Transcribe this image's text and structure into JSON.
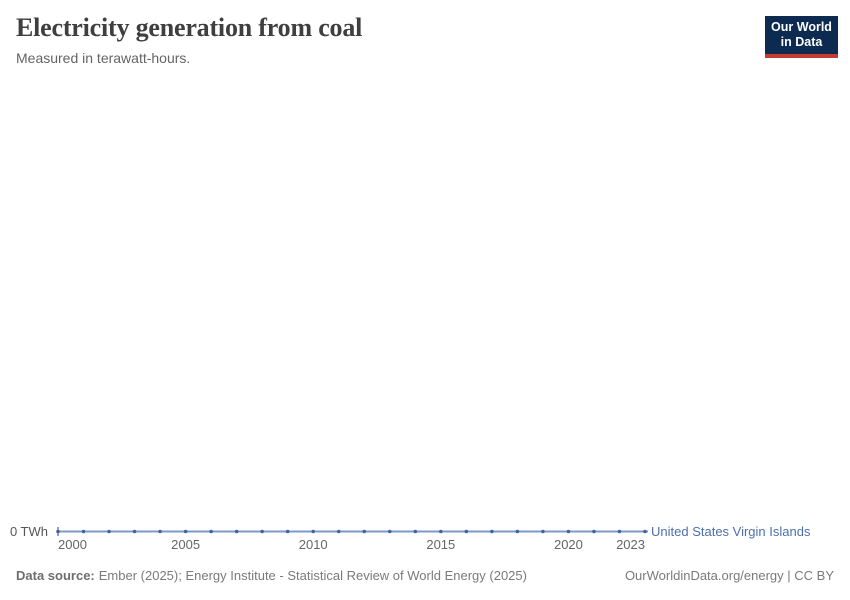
{
  "header": {
    "logo": {
      "line1": "Our World",
      "line2": "in Data",
      "bg_color": "#0d2b51",
      "accent_color": "#c73a2f"
    }
  },
  "chart_data": {
    "type": "line",
    "title": "Electricity generation from coal",
    "subtitle": "Measured in terawatt-hours.",
    "x": [
      2000,
      2001,
      2002,
      2003,
      2004,
      2005,
      2006,
      2007,
      2008,
      2009,
      2010,
      2011,
      2012,
      2013,
      2014,
      2015,
      2016,
      2017,
      2018,
      2019,
      2020,
      2021,
      2022,
      2023
    ],
    "series": [
      {
        "name": "United States Virgin Islands",
        "values": [
          0,
          0,
          0,
          0,
          0,
          0,
          0,
          0,
          0,
          0,
          0,
          0,
          0,
          0,
          0,
          0,
          0,
          0,
          0,
          0,
          0,
          0,
          0,
          0
        ],
        "unit": "TWh",
        "line_color": "#7e99c8",
        "marker_color": "#41639f",
        "label_color": "#4d6fac"
      }
    ],
    "x_ticks": [
      2000,
      2005,
      2010,
      2015,
      2020,
      2023
    ],
    "y_ticks": [
      {
        "value": 0,
        "label": "0 TWh"
      }
    ],
    "xlim": [
      2000,
      2023
    ],
    "grid": false,
    "legend_position": "end-of-line"
  },
  "footer": {
    "source_label": "Data source:",
    "source_text": "Ember (2025); Energy Institute - Statistical Review of World Energy (2025)",
    "link_text": "OurWorldinData.org/energy | CC BY"
  }
}
